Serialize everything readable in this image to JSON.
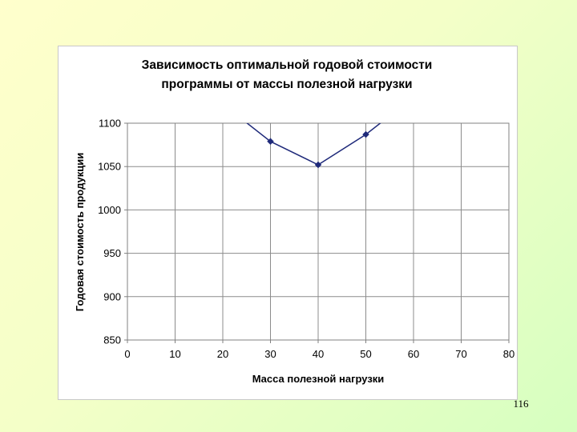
{
  "slide": {
    "number": "116"
  },
  "colors": {
    "series": "#1f2a7a",
    "grid": "#8c8c8c",
    "plot_border": "#808080",
    "background_start": "#ffffcc",
    "background_end": "#d6ffc0"
  },
  "chart_data": {
    "type": "line",
    "title_lines": [
      "Зависимость оптимальной годовой стоимости",
      "программы от массы полезной нагрузки"
    ],
    "xlabel": "Масса полезной нагрузки",
    "ylabel": "Годовая стоимость продукции",
    "xlim": [
      0,
      80
    ],
    "ylim": [
      850,
      1100
    ],
    "xticks": [
      0,
      10,
      20,
      30,
      40,
      50,
      60,
      70,
      80
    ],
    "yticks": [
      850,
      900,
      950,
      1000,
      1050,
      1100
    ],
    "grid": true,
    "legend": "none",
    "series": [
      {
        "x": [
          20,
          30,
          40,
          50,
          60
        ],
        "y": [
          1122,
          1079,
          1052,
          1087,
          1130
        ],
        "marker": "diamond",
        "markers_visible_at": [
          30,
          40,
          50
        ]
      }
    ]
  }
}
